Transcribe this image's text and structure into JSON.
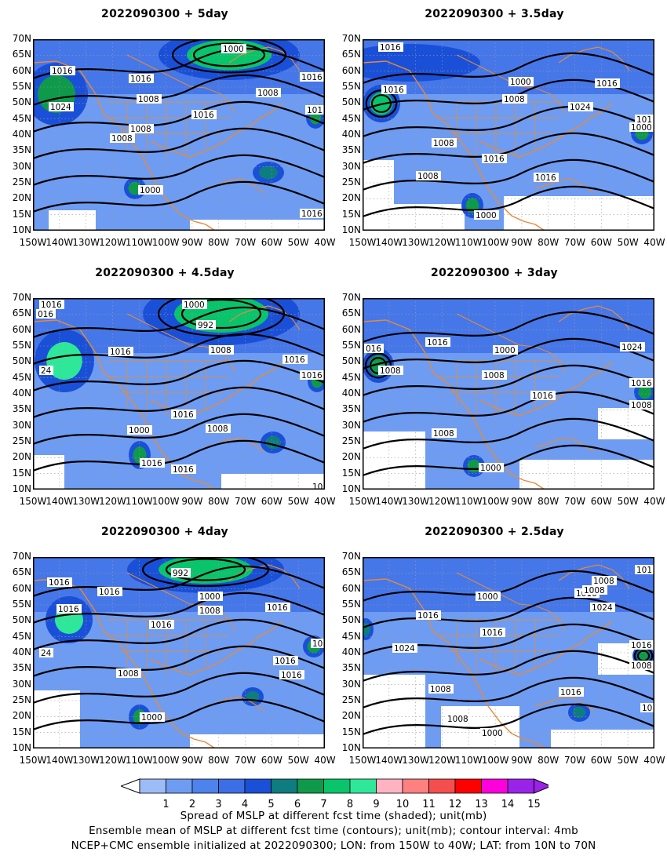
{
  "panels": [
    {
      "title": "2022090300  +  5day",
      "labels": [
        "1000",
        "1016",
        "1016",
        "1016",
        "1024",
        "1008",
        "1008",
        "1016",
        "1008",
        "1008",
        "1000",
        "1016",
        "101"
      ]
    },
    {
      "title": "2022090300  +  3.5day",
      "labels": [
        "1016",
        "1016",
        "1000",
        "1008",
        "1016",
        "1024",
        "101",
        "1000",
        "1008",
        "1016",
        "1008",
        "1016",
        "1000"
      ]
    },
    {
      "title": "2022090300  +  4.5day",
      "labels": [
        "1016",
        "016",
        "1000",
        "992",
        "1016",
        "1008",
        "1016",
        "24",
        "1016",
        "1016",
        "1008",
        "1000",
        "1016",
        "1016",
        "10"
      ]
    },
    {
      "title": "2022090300  +  3day",
      "labels": [
        "1016",
        "1000",
        "1024",
        "016",
        "1008",
        "1008",
        "1016",
        "1016",
        "1008",
        "1008",
        "1000"
      ]
    },
    {
      "title": "2022090300  +  4day",
      "labels": [
        "992",
        "1016",
        "1016",
        "1000",
        "1016",
        "1008",
        "1016",
        "1016",
        "24",
        "1016",
        "1016",
        "1008",
        "1000",
        "10"
      ]
    },
    {
      "title": "2022090300  +  2.5day",
      "labels": [
        "1008",
        "1000",
        "1016",
        "1016",
        "1024",
        "1016",
        "1008",
        "1024",
        "1016",
        "1008",
        "1008",
        "1008",
        "1016",
        "1000",
        "10",
        "101"
      ]
    }
  ],
  "lat_labels": [
    "70N",
    "65N",
    "60N",
    "55N",
    "50N",
    "45N",
    "40N",
    "35N",
    "30N",
    "25N",
    "20N",
    "15N",
    "10N"
  ],
  "lon_labels": [
    "150W",
    "140W",
    "130W",
    "120W",
    "110W",
    "100W",
    "90W",
    "80W",
    "70W",
    "60W",
    "50W",
    "40W"
  ],
  "colorbar": {
    "ticks": [
      "1",
      "2",
      "3",
      "4",
      "5",
      "6",
      "7",
      "8",
      "9",
      "10",
      "11",
      "12",
      "13",
      "14",
      "15"
    ],
    "colors": [
      "#9dbcf7",
      "#6e9cf2",
      "#4e82ec",
      "#3c6ee6",
      "#1a50d8",
      "#0d7d80",
      "#0e9a4a",
      "#08c46b",
      "#2ee89a",
      "#ffb3c2",
      "#ff8080",
      "#f54e4e",
      "#ff0000",
      "#ff00dd",
      "#9b22e8"
    ]
  },
  "caption": {
    "line1": "Spread of MSLP at different fcst time (shaded); unit(mb)",
    "line2": "Ensemble mean of MSLP at different fcst time (contours); unit(mb); contour interval: 4mb",
    "line3": "NCEP+CMC ensemble initialized at 2022090300; LON: from 150W to 40W; LAT: from 10N to 70N"
  }
}
